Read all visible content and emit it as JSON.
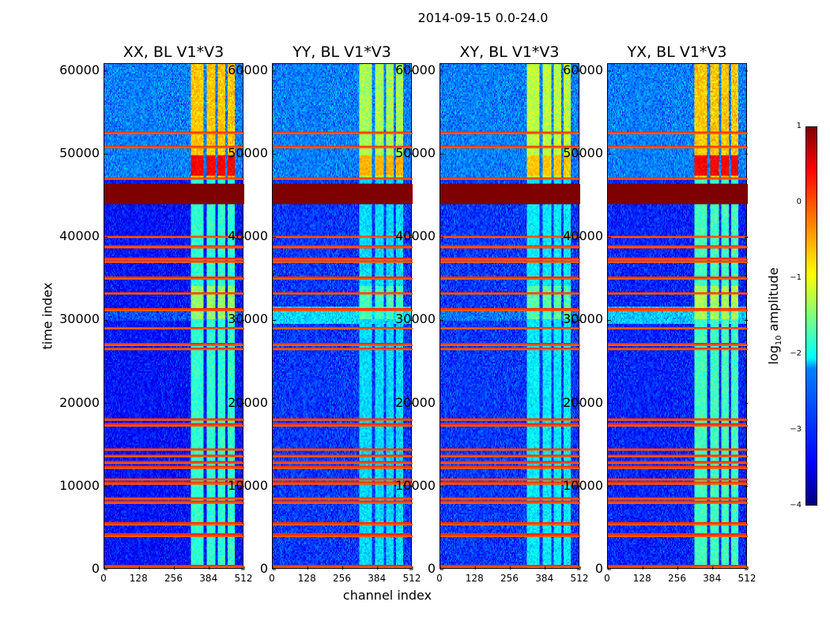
{
  "chart_data": {
    "type": "heatmap",
    "title": "2014-09-15 0.0-24.0",
    "xlabel": "channel index",
    "ylabel": "time index",
    "xlim": [
      0,
      512
    ],
    "ylim": [
      0,
      60850
    ],
    "xticks": [
      "0",
      "128",
      "256",
      "384",
      "512"
    ],
    "yticks": [
      "0",
      "10000",
      "20000",
      "30000",
      "40000",
      "50000",
      "60000"
    ],
    "ytick_values": [
      0,
      10000,
      20000,
      30000,
      40000,
      50000,
      60000
    ],
    "xtick_values": [
      0,
      128,
      256,
      384,
      512
    ],
    "colorbar": {
      "label": "log",
      "label_sub": "10",
      "label_rest": " amplitude",
      "range": [
        -4,
        1
      ],
      "ticks": [
        "1",
        "0",
        "−1",
        "−2",
        "−3",
        "−4"
      ],
      "tick_values": [
        1,
        0,
        -1,
        -2,
        -3,
        -4
      ],
      "colormap": "jet"
    },
    "flagged_block": [
      44000,
      46400
    ],
    "flagged_rows": [
      300,
      4000,
      5400,
      8000,
      8500,
      10300,
      10800,
      12200,
      12800,
      13600,
      14400,
      17300,
      18000,
      26500,
      27000,
      29000,
      31200,
      33200,
      35000,
      37000,
      37300,
      38800,
      40000,
      47000,
      50800,
      52500
    ],
    "panels": [
      {
        "title": "XX, BL V1*V3",
        "background": -3.3,
        "upper_boost": 0.55,
        "bright_time": [
          29800,
          31000,
          0.3
        ],
        "bands": [
          [
            322,
            368
          ],
          [
            378,
            410
          ],
          [
            418,
            448
          ],
          [
            458,
            482
          ]
        ],
        "band_low": -1.9,
        "band_high": -0.6,
        "band_red": 0.4
      },
      {
        "title": "YY, BL V1*V3",
        "background": -3.1,
        "upper_boost": 0.35,
        "bright_time": [
          29500,
          31500,
          0.8
        ],
        "bands": [
          [
            322,
            368
          ],
          [
            378,
            410
          ],
          [
            418,
            448
          ],
          [
            458,
            482
          ]
        ],
        "band_low": -2.3,
        "band_high": -1.3,
        "band_red": -0.5
      },
      {
        "title": "XY, BL V1*V3",
        "background": -3.1,
        "upper_boost": 0.35,
        "bright_time": [
          29800,
          31000,
          0.3
        ],
        "bands": [
          [
            322,
            368
          ],
          [
            378,
            410
          ],
          [
            418,
            448
          ],
          [
            458,
            482
          ]
        ],
        "band_low": -2.2,
        "band_high": -1.2,
        "band_red": -0.6
      },
      {
        "title": "YX, BL V1*V3",
        "background": -3.2,
        "upper_boost": 0.45,
        "bright_time": [
          29500,
          31500,
          0.8
        ],
        "bands": [
          [
            322,
            368
          ],
          [
            378,
            410
          ],
          [
            418,
            448
          ],
          [
            458,
            482
          ]
        ],
        "band_low": -1.8,
        "band_high": -0.6,
        "band_red": 0.4
      }
    ]
  }
}
